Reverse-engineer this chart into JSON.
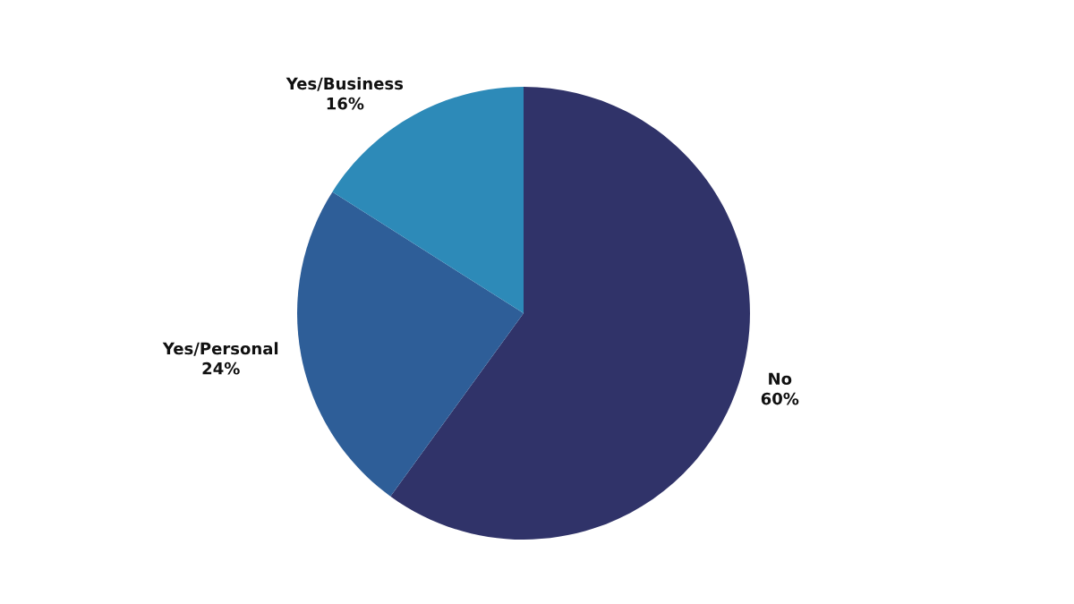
{
  "chart_data": {
    "type": "pie",
    "categories": [
      "No",
      "Yes/Personal",
      "Yes/Business"
    ],
    "values": [
      60,
      24,
      16
    ],
    "colors": [
      "#303369",
      "#2e5e98",
      "#2d8ab8"
    ],
    "value_labels": [
      "60%",
      "24%",
      "16%"
    ]
  }
}
